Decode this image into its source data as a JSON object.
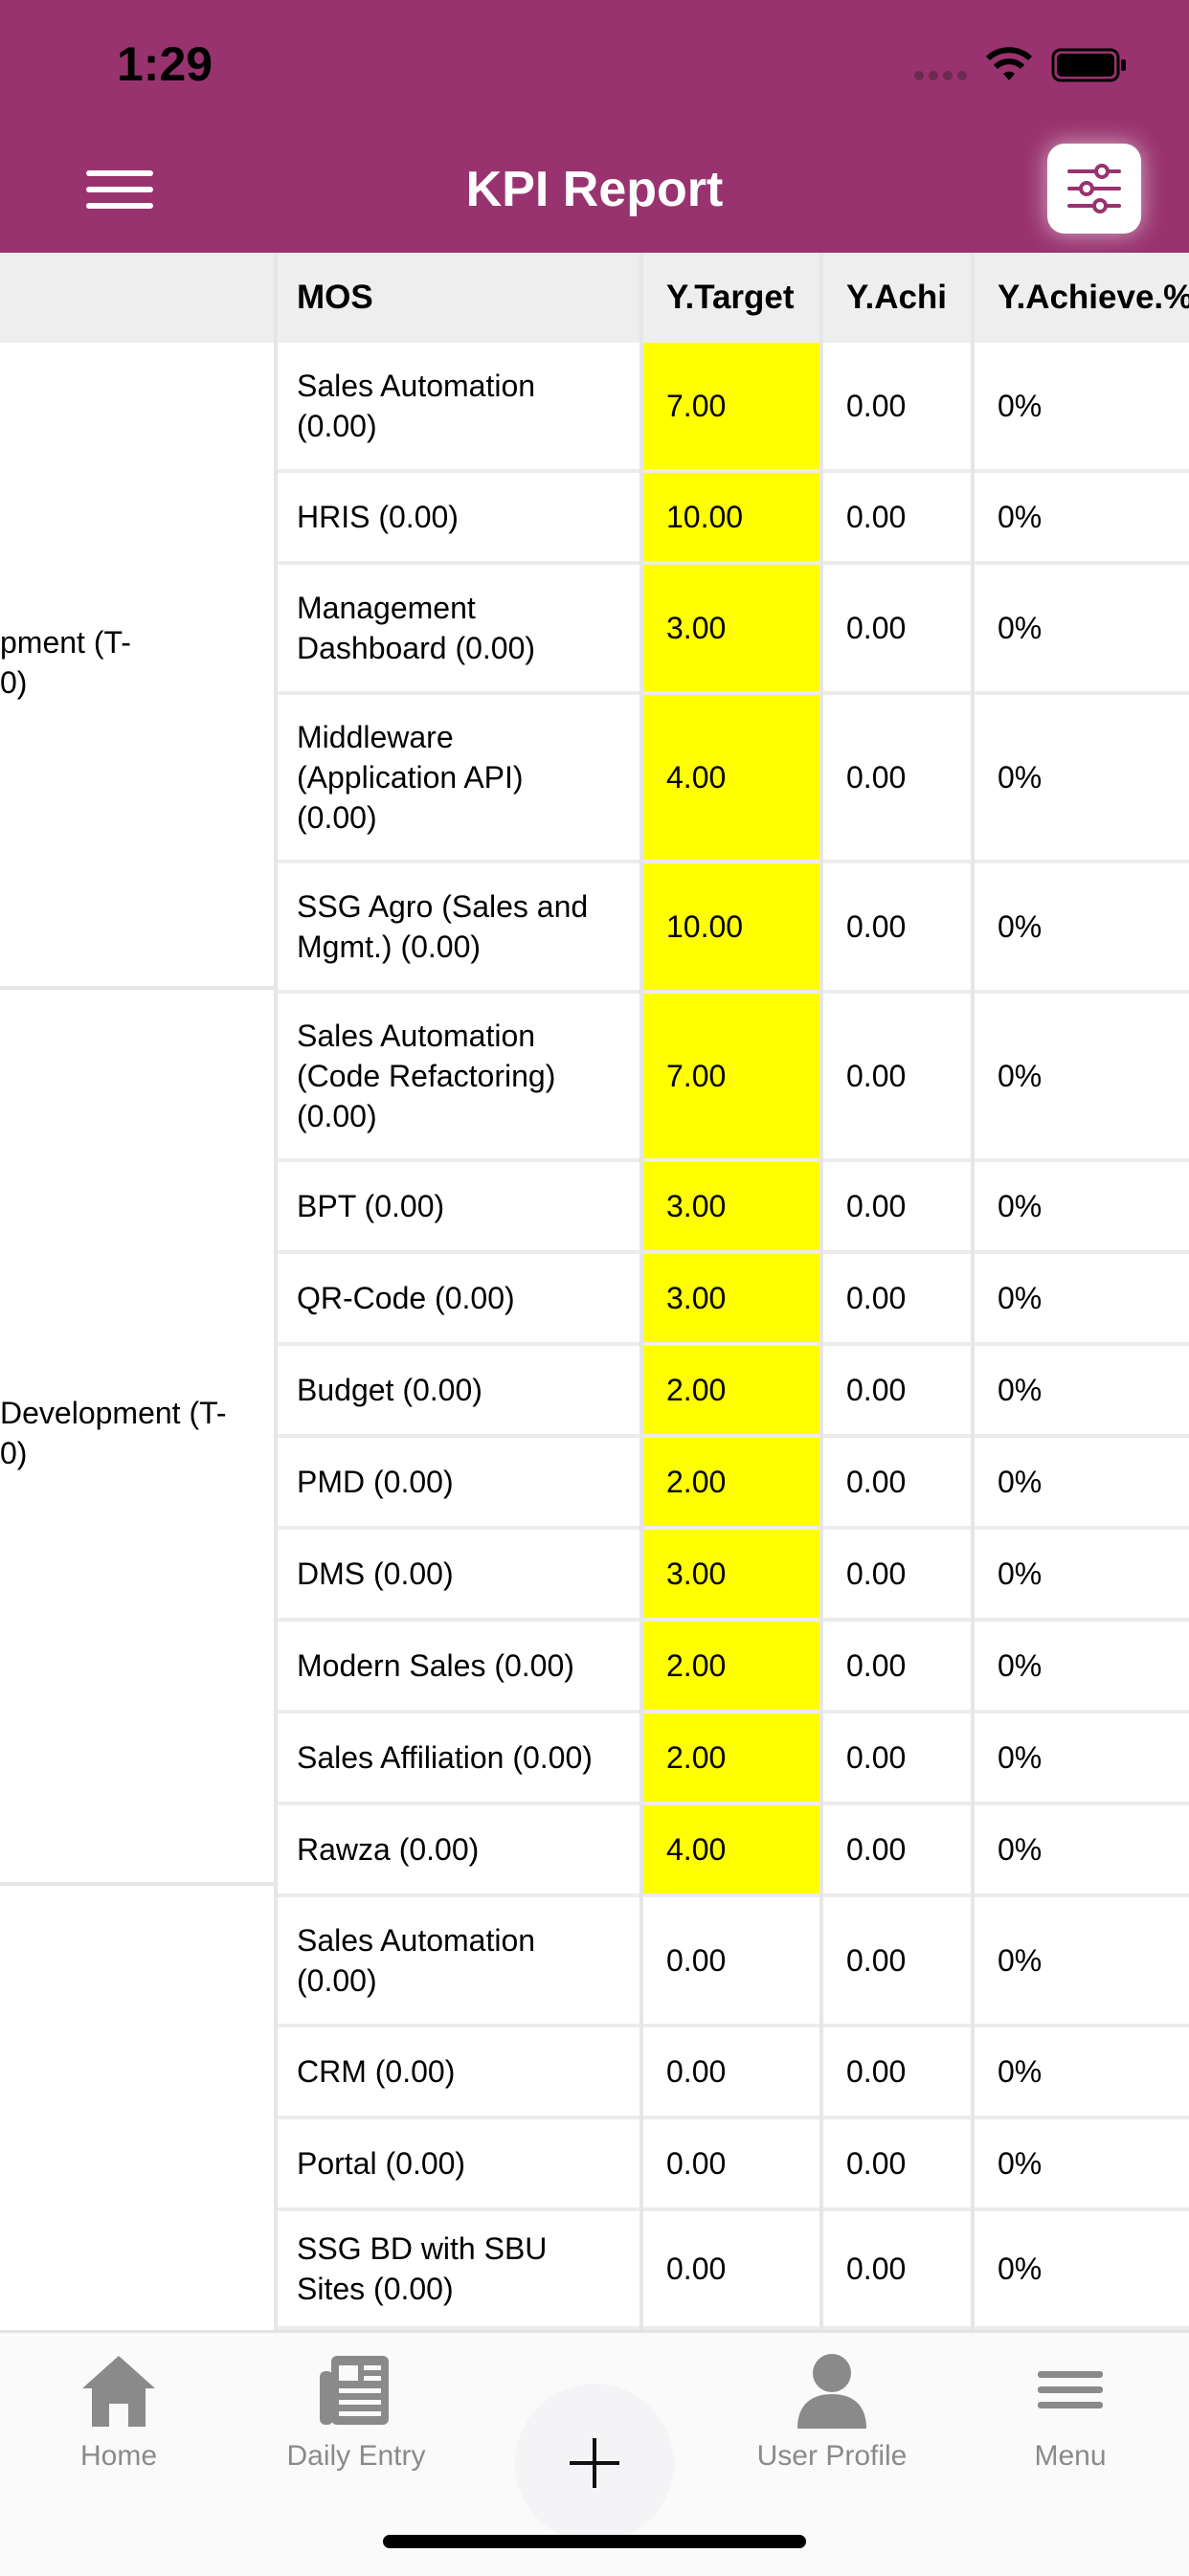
{
  "status_bar": {
    "time": "1:29"
  },
  "header": {
    "title": "KPI Report"
  },
  "table": {
    "columns": [
      "MOS",
      "Y.Target",
      "Y.Achi",
      "Y.Achieve.%"
    ],
    "groups": [
      {
        "label_line1": "pment (T-",
        "label_line2": "0)"
      },
      {
        "label_line1": "Development (T-",
        "label_line2": "0)"
      },
      {
        "label_line1": "",
        "label_line2": ""
      }
    ],
    "rows": [
      {
        "mos_l1": "Sales Automation",
        "mos_l2": "(0.00)",
        "mos_l3": "",
        "target": "7.00",
        "achi": "0.00",
        "pct": "0%"
      },
      {
        "mos_l1": "HRIS (0.00)",
        "mos_l2": "",
        "mos_l3": "",
        "target": "10.00",
        "achi": "0.00",
        "pct": "0%"
      },
      {
        "mos_l1": "Management",
        "mos_l2": "Dashboard (0.00)",
        "mos_l3": "",
        "target": "3.00",
        "achi": "0.00",
        "pct": "0%"
      },
      {
        "mos_l1": "Middleware",
        "mos_l2": "(Application API)",
        "mos_l3": "(0.00)",
        "target": "4.00",
        "achi": "0.00",
        "pct": "0%"
      },
      {
        "mos_l1": "SSG Agro (Sales and",
        "mos_l2": "Mgmt.) (0.00)",
        "mos_l3": "",
        "target": "10.00",
        "achi": "0.00",
        "pct": "0%"
      },
      {
        "mos_l1": "Sales Automation",
        "mos_l2": "(Code Refactoring)",
        "mos_l3": "(0.00)",
        "target": "7.00",
        "achi": "0.00",
        "pct": "0%"
      },
      {
        "mos_l1": "BPT (0.00)",
        "mos_l2": "",
        "mos_l3": "",
        "target": "3.00",
        "achi": "0.00",
        "pct": "0%"
      },
      {
        "mos_l1": "QR-Code (0.00)",
        "mos_l2": "",
        "mos_l3": "",
        "target": "3.00",
        "achi": "0.00",
        "pct": "0%"
      },
      {
        "mos_l1": "Budget (0.00)",
        "mos_l2": "",
        "mos_l3": "",
        "target": "2.00",
        "achi": "0.00",
        "pct": "0%"
      },
      {
        "mos_l1": "PMD (0.00)",
        "mos_l2": "",
        "mos_l3": "",
        "target": "2.00",
        "achi": "0.00",
        "pct": "0%"
      },
      {
        "mos_l1": "DMS (0.00)",
        "mos_l2": "",
        "mos_l3": "",
        "target": "3.00",
        "achi": "0.00",
        "pct": "0%"
      },
      {
        "mos_l1": "Modern Sales (0.00)",
        "mos_l2": "",
        "mos_l3": "",
        "target": "2.00",
        "achi": "0.00",
        "pct": "0%"
      },
      {
        "mos_l1": "Sales Affiliation (0.00)",
        "mos_l2": "",
        "mos_l3": "",
        "target": "2.00",
        "achi": "0.00",
        "pct": "0%"
      },
      {
        "mos_l1": "Rawza (0.00)",
        "mos_l2": "",
        "mos_l3": "",
        "target": "4.00",
        "achi": "0.00",
        "pct": "0%"
      },
      {
        "mos_l1": "Sales Automation",
        "mos_l2": "(0.00)",
        "mos_l3": "",
        "target": "0.00",
        "achi": "0.00",
        "pct": "0%"
      },
      {
        "mos_l1": "CRM (0.00)",
        "mos_l2": "",
        "mos_l3": "",
        "target": "0.00",
        "achi": "0.00",
        "pct": "0%"
      },
      {
        "mos_l1": "Portal (0.00)",
        "mos_l2": "",
        "mos_l3": "",
        "target": "0.00",
        "achi": "0.00",
        "pct": "0%"
      },
      {
        "mos_l1": "SSG BD with SBU",
        "mos_l2": "Sites (0.00)",
        "mos_l3": "",
        "target": "0.00",
        "achi": "0.00",
        "pct": "0%"
      }
    ]
  },
  "bottom_nav": {
    "items": [
      {
        "label": "Home",
        "icon": "home-icon"
      },
      {
        "label": "Daily Entry",
        "icon": "newspaper-icon"
      },
      {
        "label": "User Profile",
        "icon": "user-icon"
      },
      {
        "label": "Menu",
        "icon": "menu-icon"
      }
    ],
    "fab_icon": "plus-icon"
  },
  "colors": {
    "header": "#99336f",
    "highlight": "#ffff00"
  }
}
